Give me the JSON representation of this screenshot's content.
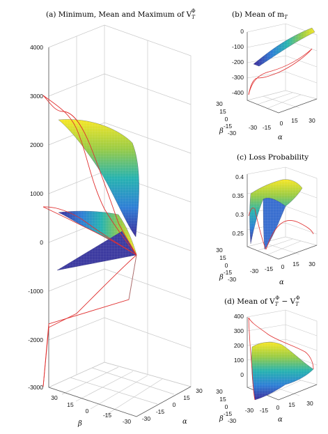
{
  "charts": {
    "a": {
      "title": "(a) Minimum, Mean and Maximum of V",
      "title_sub": "T",
      "title_sup": "Φ",
      "zticks": [
        "4000",
        "3000",
        "2000",
        "1000",
        "0",
        "-1000",
        "-2000",
        "-3000"
      ],
      "beta_ticks": [
        "30",
        "15",
        "0",
        "-15",
        "-30"
      ],
      "alpha_ticks": [
        "-30",
        "-15",
        "0",
        "15",
        "30"
      ],
      "xlabel": "β",
      "ylabel": "α"
    },
    "b": {
      "title": "(b) Mean of m",
      "title_sub": "T",
      "zticks": [
        "0",
        "-100",
        "-200",
        "-300",
        "-400"
      ],
      "beta_ticks": [
        "30",
        "15",
        "0",
        "-15",
        "-30"
      ],
      "alpha_ticks": [
        "-30",
        "-15",
        "0",
        "15",
        "30"
      ],
      "xlabel": "β",
      "ylabel": "α"
    },
    "c": {
      "title": "(c) Loss Probability",
      "zticks": [
        "0.4",
        "0.35",
        "0.3",
        "0.25"
      ],
      "beta_ticks": [
        "30",
        "15",
        "0",
        "-15",
        "-30"
      ],
      "alpha_ticks": [
        "-30",
        "-15",
        "0",
        "15",
        "30"
      ],
      "xlabel": "β",
      "ylabel": "α"
    },
    "d": {
      "title": "(d) Mean of V",
      "title_sub": "T",
      "title_sup": "Φ",
      "title_minus": " − V",
      "title_sub2": "T",
      "title_sup2": "Φ",
      "zticks": [
        "400",
        "300",
        "200",
        "100",
        "0"
      ],
      "beta_ticks": [
        "30",
        "15",
        "0",
        "-15",
        "-30"
      ],
      "alpha_ticks": [
        "-30",
        "-15",
        "0",
        "15",
        "30"
      ],
      "xlabel": "β",
      "ylabel": "α"
    }
  },
  "chart_data": [
    {
      "type": "surface",
      "panel": "a",
      "title": "(a) Minimum, Mean and Maximum of V_T^Φ",
      "xlabel": "β",
      "ylabel": "α",
      "x_range": [
        -30,
        30
      ],
      "y_range": [
        -30,
        30
      ],
      "zlim": [
        -3000,
        4000
      ],
      "series": [
        {
          "name": "Maximum",
          "z_range": [
            500,
            2500
          ]
        },
        {
          "name": "Mean",
          "z_range": [
            0,
            500
          ]
        },
        {
          "name": "Minimum",
          "z_range": [
            -500,
            0
          ]
        }
      ],
      "colormap": "parula",
      "grid": true
    },
    {
      "type": "surface",
      "panel": "b",
      "title": "(b) Mean of m_T",
      "xlabel": "β",
      "ylabel": "α",
      "x_range": [
        -30,
        30
      ],
      "y_range": [
        -30,
        30
      ],
      "zlim": [
        -400,
        0
      ],
      "colormap": "parula",
      "grid": true
    },
    {
      "type": "surface",
      "panel": "c",
      "title": "(c) Loss Probability",
      "xlabel": "β",
      "ylabel": "α",
      "x_range": [
        -30,
        30
      ],
      "y_range": [
        -30,
        30
      ],
      "zlim": [
        0.25,
        0.4
      ],
      "colormap": "parula",
      "grid": true
    },
    {
      "type": "surface",
      "panel": "d",
      "title": "(d) Mean of V_T^Φ − V_T^Φ",
      "xlabel": "β",
      "ylabel": "α",
      "x_range": [
        -30,
        30
      ],
      "y_range": [
        -30,
        30
      ],
      "zlim": [
        0,
        400
      ],
      "colormap": "parula",
      "grid": true
    }
  ]
}
